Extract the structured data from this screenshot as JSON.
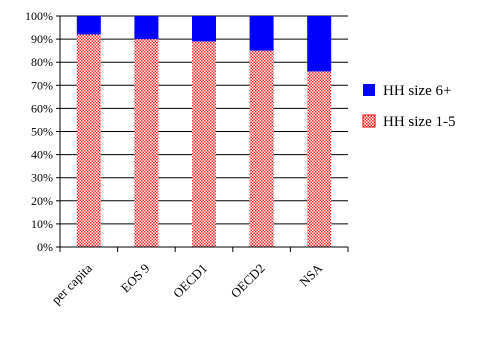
{
  "chart_data": {
    "type": "bar",
    "stacked": true,
    "percent": true,
    "categories": [
      "per capita",
      "EOS 9",
      "OECD1",
      "OECD2",
      "NSA"
    ],
    "series": [
      {
        "name": "HH size 1-5",
        "values": [
          92,
          90,
          89,
          85,
          76
        ],
        "color": "#ff0000",
        "pattern": "red-crosshatch"
      },
      {
        "name": "HH size 6+",
        "values": [
          8,
          10,
          11,
          15,
          24
        ],
        "color": "#0000ff",
        "pattern": "solid"
      }
    ],
    "ylim": [
      0,
      100
    ],
    "yticks": [
      "0%",
      "10%",
      "20%",
      "30%",
      "40%",
      "50%",
      "60%",
      "70%",
      "80%",
      "90%",
      "100%"
    ],
    "grid": true,
    "legend_position": "right",
    "legend_order": [
      "HH size 6+",
      "HH size 1-5"
    ]
  }
}
